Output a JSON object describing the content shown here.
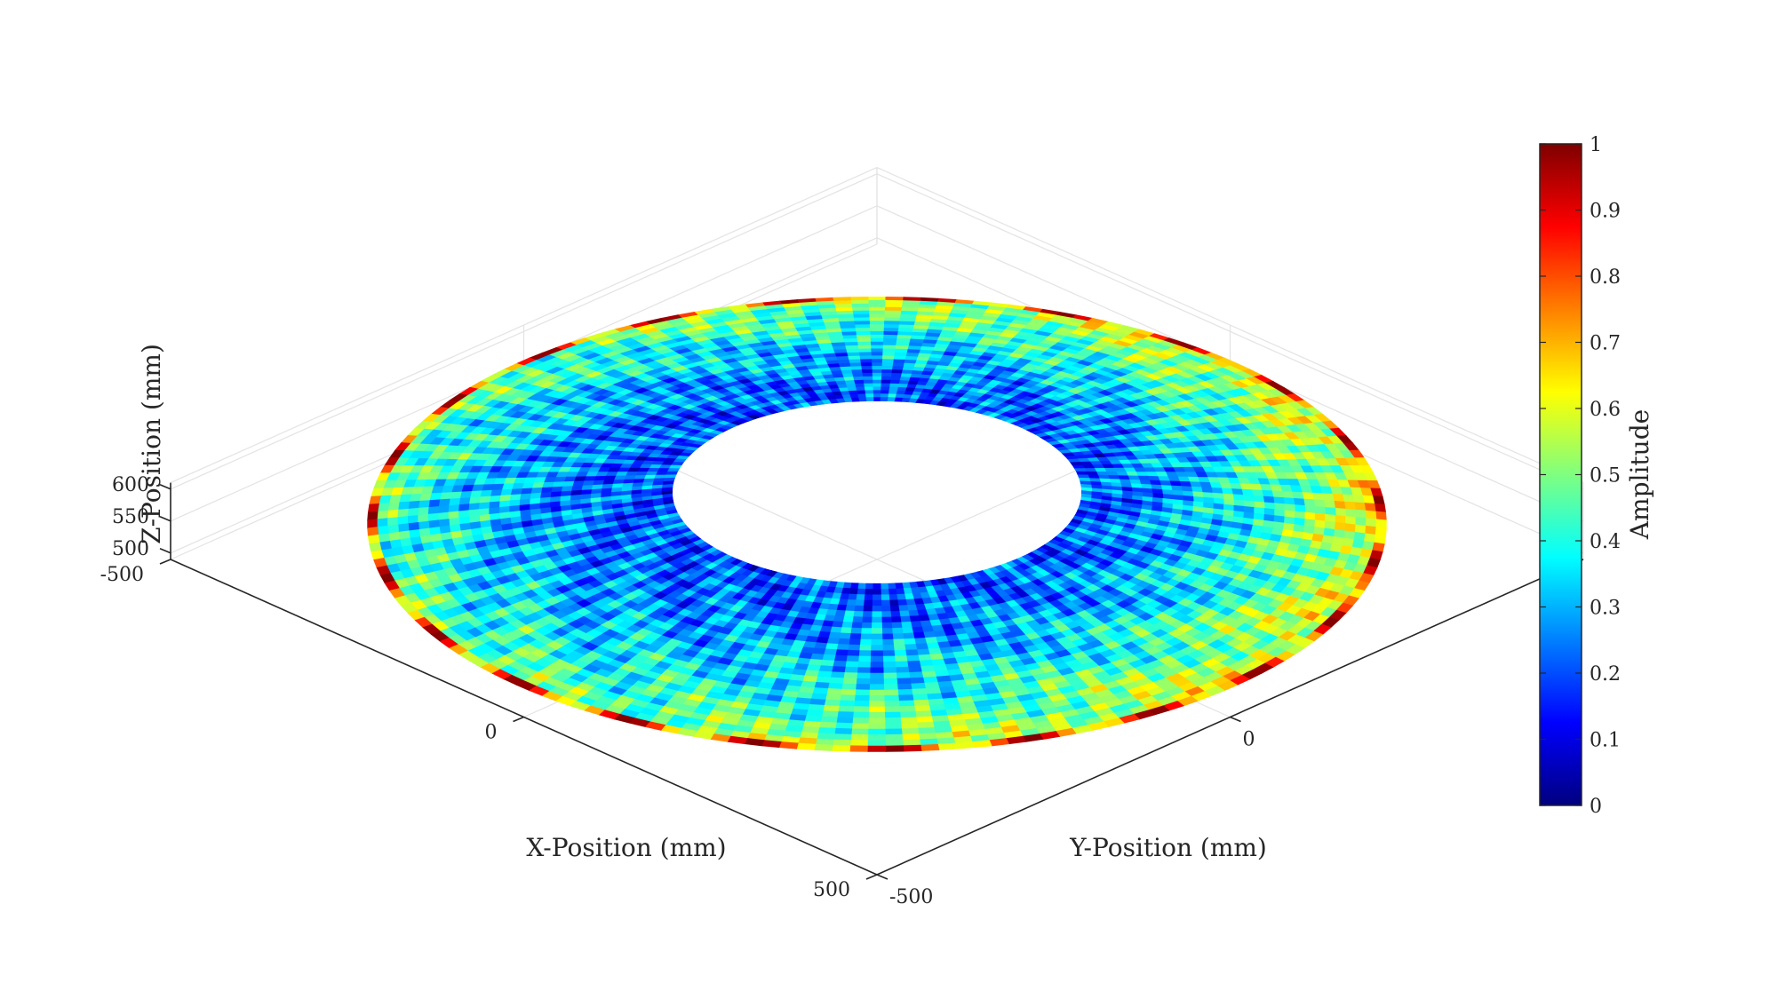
{
  "chart_data": {
    "type": "surface-3d",
    "xlabel": "X-Position (mm)",
    "ylabel": "Y-Position (mm)",
    "zlabel": "Z-Position (mm)",
    "x_ticks": [
      "-500",
      "0",
      "500"
    ],
    "y_ticks": [
      "-500",
      "0"
    ],
    "z_ticks": [
      "600",
      "550",
      "500"
    ],
    "x_tick_values": [
      -500,
      0,
      500
    ],
    "y_tick_values": [
      -500,
      0
    ],
    "z_tick_values": [
      500,
      550,
      600
    ],
    "xlim": [
      -500,
      500
    ],
    "ylim": [
      -500,
      500
    ],
    "zlim": [
      490,
      610
    ],
    "grid": true,
    "colormap": "jet",
    "colorbar": {
      "label": "Amplitude",
      "ticks": [
        "0",
        "0.1",
        "0.2",
        "0.3",
        "0.4",
        "0.5",
        "0.6",
        "0.7",
        "0.8",
        "0.9",
        "1"
      ],
      "tick_values": [
        0,
        0.1,
        0.2,
        0.3,
        0.4,
        0.5,
        0.6,
        0.7,
        0.8,
        0.9,
        1
      ],
      "clim": [
        0,
        1
      ]
    },
    "surface": {
      "shape": "annulus",
      "inner_radius_mm": 205,
      "outer_radius_mm": 510,
      "amplitude_inner_mean": 0.2,
      "amplitude_outer_mean": 0.55,
      "amplitude_edge_max": 1.0
    }
  },
  "colors": {
    "axis": "#262626",
    "grid": "#e3e3e3",
    "jet_stops": [
      "#00007f",
      "#0000ff",
      "#007fff",
      "#00ffff",
      "#7fff7f",
      "#ffff00",
      "#ff7f00",
      "#ff0000",
      "#7f0000"
    ]
  }
}
